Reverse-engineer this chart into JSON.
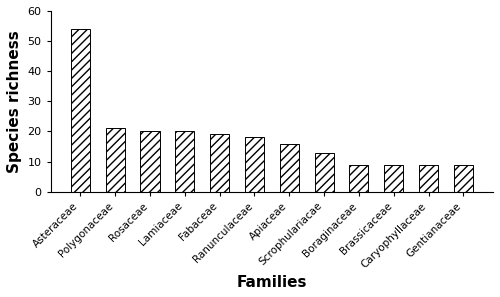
{
  "categories": [
    "Asteraceae",
    "Polygonaceae",
    "Rosaceae",
    "Lamiaceae",
    "Fabaceae",
    "Ranunculaceae",
    "Apiaceae",
    "Scrophulariacae",
    "Boraginaceae",
    "Brassicaceae",
    "Caryophyllaceae",
    "Gentianaceae"
  ],
  "values": [
    54,
    21,
    20,
    20,
    19,
    18,
    16,
    13,
    9,
    9,
    9,
    9
  ],
  "ylabel": "Species richness",
  "xlabel": "Families",
  "ylim": [
    0,
    60
  ],
  "yticks": [
    0,
    10,
    20,
    30,
    40,
    50,
    60
  ],
  "hatch": "////",
  "figsize": [
    5.0,
    2.97
  ],
  "dpi": 100,
  "bar_width": 0.55,
  "xlabel_fontsize": 11,
  "ylabel_fontsize": 11,
  "tick_fontsize": 8,
  "xtick_fontsize": 7.5,
  "xlabel_fontweight": "bold",
  "ylabel_fontweight": "bold"
}
